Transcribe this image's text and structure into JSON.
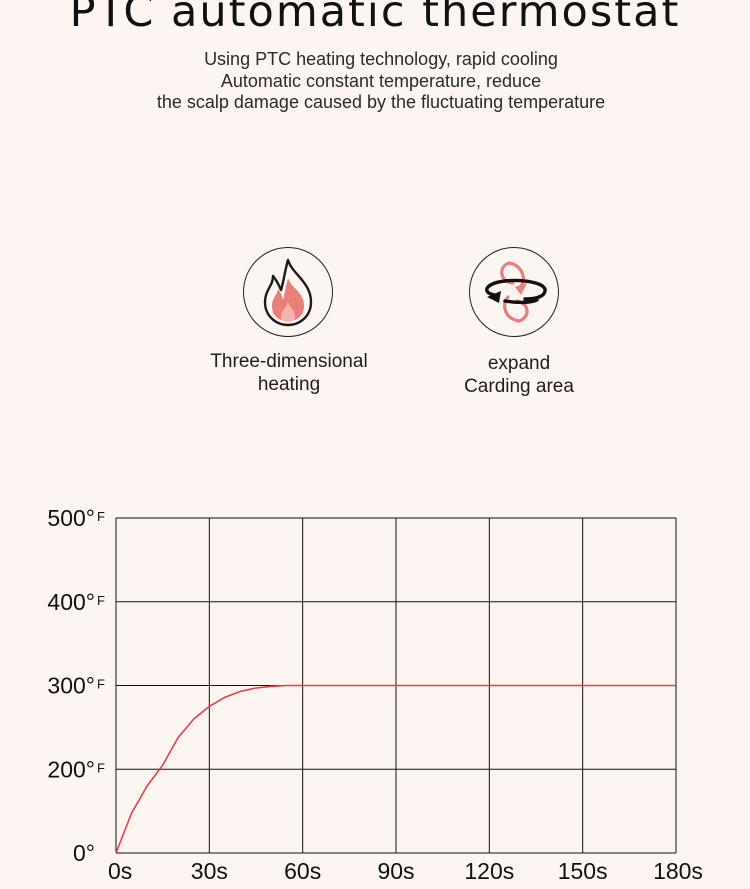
{
  "title": "PTC automatic thermostat",
  "subtitle_lines": [
    "Using PTC heating technology, rapid cooling",
    "Automatic constant temperature, reduce",
    "the scalp damage caused by the fluctuating temperature"
  ],
  "features": [
    {
      "icon": "flame-icon",
      "label_lines": [
        "Three-dimensional",
        "heating"
      ]
    },
    {
      "icon": "rotate-arrows-icon",
      "label_lines": [
        "expand",
        "Carding area"
      ]
    }
  ],
  "colors": {
    "background": "#fdf5f2",
    "accent": "#e8807a",
    "curve": "#e8403f",
    "grid": "#111111"
  },
  "chart_data": {
    "type": "line",
    "title": "",
    "xlabel": "",
    "ylabel": "",
    "x_ticks": [
      "0s",
      "30s",
      "60s",
      "90s",
      "120s",
      "150s",
      "180s"
    ],
    "y_ticks": [
      "0°",
      "200°",
      "300°",
      "400°",
      "500°"
    ],
    "y_tick_units": [
      "",
      "F",
      "F",
      "F",
      "F"
    ],
    "grid": true,
    "series": [
      {
        "x": [
          0,
          5,
          10,
          15,
          20,
          25,
          30,
          35,
          40,
          45,
          50,
          55,
          60,
          90,
          120,
          150,
          180
        ],
        "y": [
          0,
          95,
          160,
          205,
          238,
          260,
          275,
          286,
          293,
          297,
          299,
          300,
          300,
          300,
          300,
          300,
          300
        ]
      }
    ]
  }
}
